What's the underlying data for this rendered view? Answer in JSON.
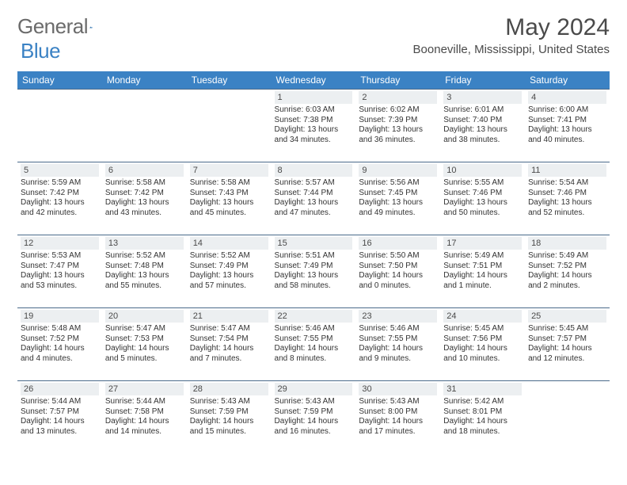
{
  "logo": {
    "text_gray": "General",
    "text_blue": "Blue"
  },
  "header": {
    "month_title": "May 2024",
    "location": "Booneville, Mississippi, United States"
  },
  "colors": {
    "header_bg": "#3b82c4",
    "header_text": "#ffffff",
    "daynum_bg": "#eceff1",
    "border": "#4a6a8a",
    "logo_gray": "#6b6b6b",
    "logo_blue": "#3b82c4",
    "body_text": "#333333"
  },
  "dayNames": [
    "Sunday",
    "Monday",
    "Tuesday",
    "Wednesday",
    "Thursday",
    "Friday",
    "Saturday"
  ],
  "weeks": [
    [
      {
        "day": "",
        "lines": []
      },
      {
        "day": "",
        "lines": []
      },
      {
        "day": "",
        "lines": []
      },
      {
        "day": "1",
        "lines": [
          "Sunrise: 6:03 AM",
          "Sunset: 7:38 PM",
          "Daylight: 13 hours",
          "and 34 minutes."
        ]
      },
      {
        "day": "2",
        "lines": [
          "Sunrise: 6:02 AM",
          "Sunset: 7:39 PM",
          "Daylight: 13 hours",
          "and 36 minutes."
        ]
      },
      {
        "day": "3",
        "lines": [
          "Sunrise: 6:01 AM",
          "Sunset: 7:40 PM",
          "Daylight: 13 hours",
          "and 38 minutes."
        ]
      },
      {
        "day": "4",
        "lines": [
          "Sunrise: 6:00 AM",
          "Sunset: 7:41 PM",
          "Daylight: 13 hours",
          "and 40 minutes."
        ]
      }
    ],
    [
      {
        "day": "5",
        "lines": [
          "Sunrise: 5:59 AM",
          "Sunset: 7:42 PM",
          "Daylight: 13 hours",
          "and 42 minutes."
        ]
      },
      {
        "day": "6",
        "lines": [
          "Sunrise: 5:58 AM",
          "Sunset: 7:42 PM",
          "Daylight: 13 hours",
          "and 43 minutes."
        ]
      },
      {
        "day": "7",
        "lines": [
          "Sunrise: 5:58 AM",
          "Sunset: 7:43 PM",
          "Daylight: 13 hours",
          "and 45 minutes."
        ]
      },
      {
        "day": "8",
        "lines": [
          "Sunrise: 5:57 AM",
          "Sunset: 7:44 PM",
          "Daylight: 13 hours",
          "and 47 minutes."
        ]
      },
      {
        "day": "9",
        "lines": [
          "Sunrise: 5:56 AM",
          "Sunset: 7:45 PM",
          "Daylight: 13 hours",
          "and 49 minutes."
        ]
      },
      {
        "day": "10",
        "lines": [
          "Sunrise: 5:55 AM",
          "Sunset: 7:46 PM",
          "Daylight: 13 hours",
          "and 50 minutes."
        ]
      },
      {
        "day": "11",
        "lines": [
          "Sunrise: 5:54 AM",
          "Sunset: 7:46 PM",
          "Daylight: 13 hours",
          "and 52 minutes."
        ]
      }
    ],
    [
      {
        "day": "12",
        "lines": [
          "Sunrise: 5:53 AM",
          "Sunset: 7:47 PM",
          "Daylight: 13 hours",
          "and 53 minutes."
        ]
      },
      {
        "day": "13",
        "lines": [
          "Sunrise: 5:52 AM",
          "Sunset: 7:48 PM",
          "Daylight: 13 hours",
          "and 55 minutes."
        ]
      },
      {
        "day": "14",
        "lines": [
          "Sunrise: 5:52 AM",
          "Sunset: 7:49 PM",
          "Daylight: 13 hours",
          "and 57 minutes."
        ]
      },
      {
        "day": "15",
        "lines": [
          "Sunrise: 5:51 AM",
          "Sunset: 7:49 PM",
          "Daylight: 13 hours",
          "and 58 minutes."
        ]
      },
      {
        "day": "16",
        "lines": [
          "Sunrise: 5:50 AM",
          "Sunset: 7:50 PM",
          "Daylight: 14 hours",
          "and 0 minutes."
        ]
      },
      {
        "day": "17",
        "lines": [
          "Sunrise: 5:49 AM",
          "Sunset: 7:51 PM",
          "Daylight: 14 hours",
          "and 1 minute."
        ]
      },
      {
        "day": "18",
        "lines": [
          "Sunrise: 5:49 AM",
          "Sunset: 7:52 PM",
          "Daylight: 14 hours",
          "and 2 minutes."
        ]
      }
    ],
    [
      {
        "day": "19",
        "lines": [
          "Sunrise: 5:48 AM",
          "Sunset: 7:52 PM",
          "Daylight: 14 hours",
          "and 4 minutes."
        ]
      },
      {
        "day": "20",
        "lines": [
          "Sunrise: 5:47 AM",
          "Sunset: 7:53 PM",
          "Daylight: 14 hours",
          "and 5 minutes."
        ]
      },
      {
        "day": "21",
        "lines": [
          "Sunrise: 5:47 AM",
          "Sunset: 7:54 PM",
          "Daylight: 14 hours",
          "and 7 minutes."
        ]
      },
      {
        "day": "22",
        "lines": [
          "Sunrise: 5:46 AM",
          "Sunset: 7:55 PM",
          "Daylight: 14 hours",
          "and 8 minutes."
        ]
      },
      {
        "day": "23",
        "lines": [
          "Sunrise: 5:46 AM",
          "Sunset: 7:55 PM",
          "Daylight: 14 hours",
          "and 9 minutes."
        ]
      },
      {
        "day": "24",
        "lines": [
          "Sunrise: 5:45 AM",
          "Sunset: 7:56 PM",
          "Daylight: 14 hours",
          "and 10 minutes."
        ]
      },
      {
        "day": "25",
        "lines": [
          "Sunrise: 5:45 AM",
          "Sunset: 7:57 PM",
          "Daylight: 14 hours",
          "and 12 minutes."
        ]
      }
    ],
    [
      {
        "day": "26",
        "lines": [
          "Sunrise: 5:44 AM",
          "Sunset: 7:57 PM",
          "Daylight: 14 hours",
          "and 13 minutes."
        ]
      },
      {
        "day": "27",
        "lines": [
          "Sunrise: 5:44 AM",
          "Sunset: 7:58 PM",
          "Daylight: 14 hours",
          "and 14 minutes."
        ]
      },
      {
        "day": "28",
        "lines": [
          "Sunrise: 5:43 AM",
          "Sunset: 7:59 PM",
          "Daylight: 14 hours",
          "and 15 minutes."
        ]
      },
      {
        "day": "29",
        "lines": [
          "Sunrise: 5:43 AM",
          "Sunset: 7:59 PM",
          "Daylight: 14 hours",
          "and 16 minutes."
        ]
      },
      {
        "day": "30",
        "lines": [
          "Sunrise: 5:43 AM",
          "Sunset: 8:00 PM",
          "Daylight: 14 hours",
          "and 17 minutes."
        ]
      },
      {
        "day": "31",
        "lines": [
          "Sunrise: 5:42 AM",
          "Sunset: 8:01 PM",
          "Daylight: 14 hours",
          "and 18 minutes."
        ]
      },
      {
        "day": "",
        "lines": []
      }
    ]
  ]
}
